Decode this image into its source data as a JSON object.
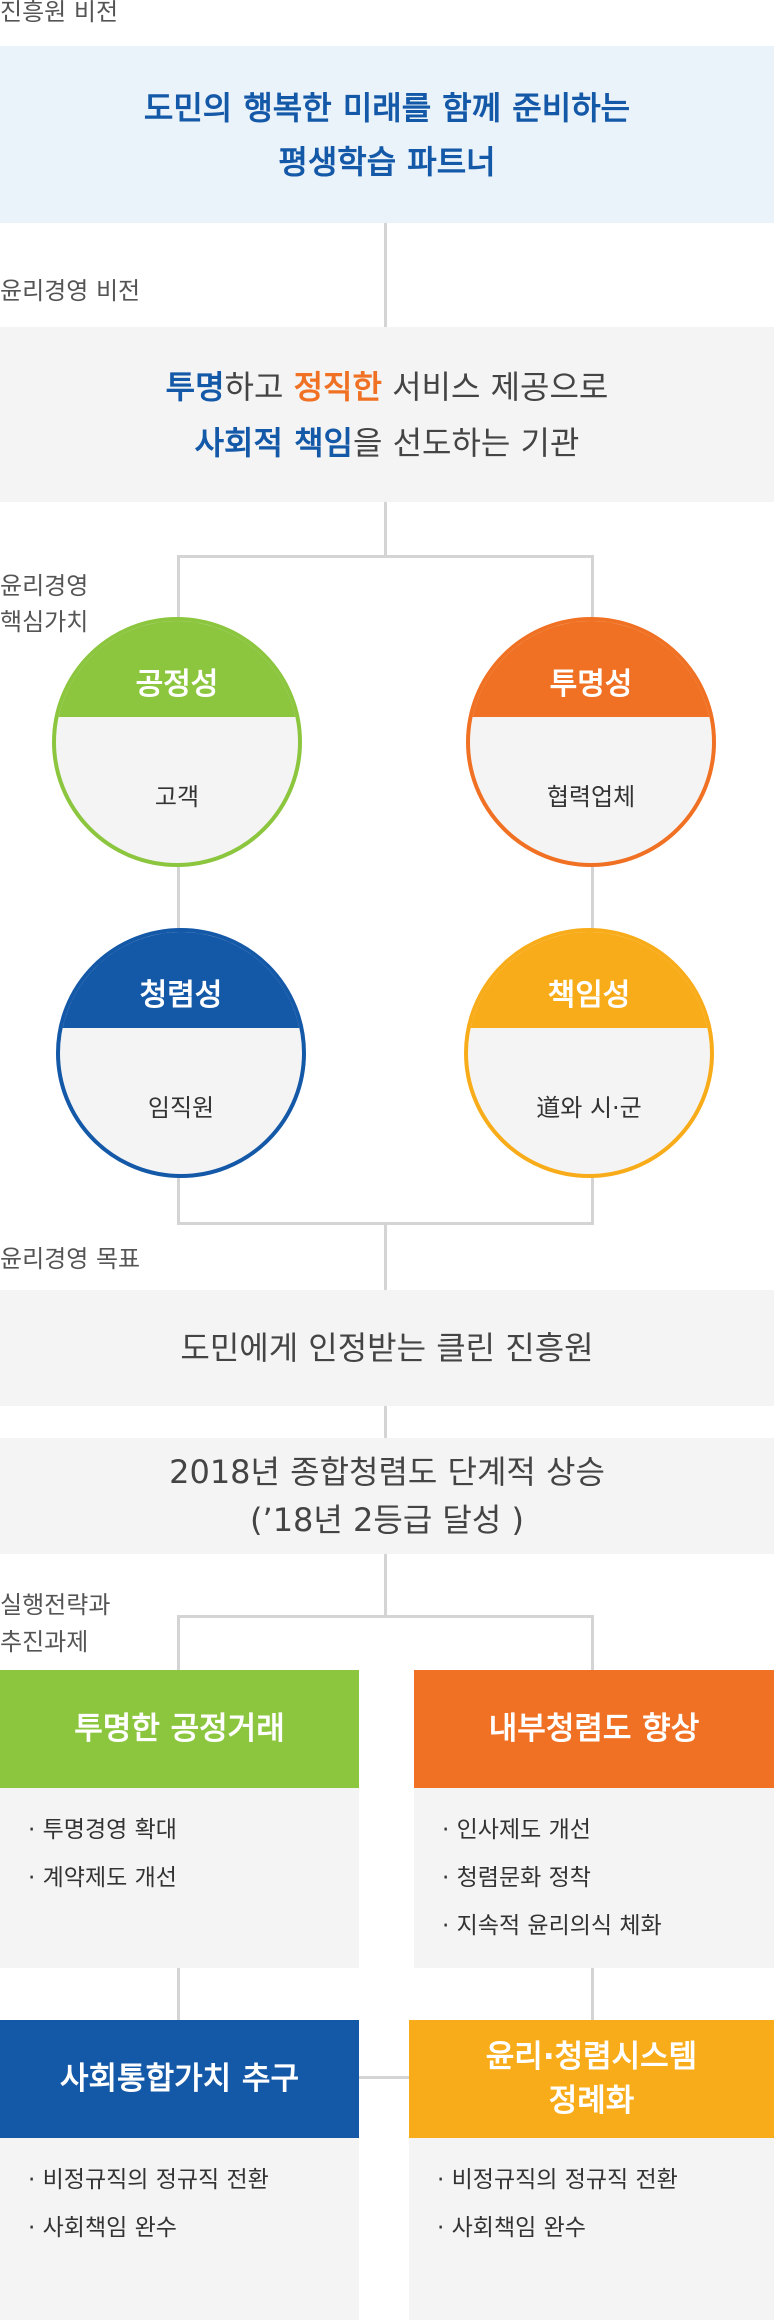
{
  "vision": {
    "label": "진흥원 비전",
    "line1": "도민의 행복한 미래를 함께 준비하는",
    "line2": "평생학습 파트너"
  },
  "ethics_vision": {
    "label": "윤리경영 비전",
    "line1_a": "투명",
    "line1_b": "하고 ",
    "line1_c": "정직한",
    "line1_d": " 서비스 제공으로",
    "line2_a": "사회적 책임",
    "line2_b": "을 선도하는 기관"
  },
  "core_values": {
    "label_line1": "윤리경영",
    "label_line2": "핵심가치",
    "items": [
      {
        "title": "공정성",
        "target": "고객",
        "color": "#8cc63f"
      },
      {
        "title": "투명성",
        "target": "협력업체",
        "color": "#f07123"
      },
      {
        "title": "청렴성",
        "target": "임직원",
        "color": "#1458a8"
      },
      {
        "title": "책임성",
        "target": "道와 시·군",
        "color": "#f9ac1a"
      }
    ]
  },
  "goals": {
    "label": "윤리경영 목표",
    "goal1": "도민에게 인정받는 클린 진흥원",
    "goal2_line1": "2018년 종합청렴도 단계적 상승",
    "goal2_line2": "(’18년 2등급 달성 )"
  },
  "strategy": {
    "label_line1": "실행전략과",
    "label_line2": "추진과제",
    "cards": [
      {
        "title": "투명한 공정거래",
        "color": "#8cc63f",
        "items": [
          "· 투명경영 확대",
          "· 계약제도 개선"
        ]
      },
      {
        "title": "내부청렴도 향상",
        "color": "#f07123",
        "items": [
          "· 인사제도 개선",
          "· 청렴문화 정착",
          "· 지속적 윤리의식 체화"
        ]
      },
      {
        "title": "사회통합가치 추구",
        "color": "#1458a8",
        "items": [
          "· 비정규직의 정규직 전환",
          "· 사회책임 완수"
        ]
      },
      {
        "title_line1": "윤리·청렴시스템",
        "title_line2": "정례화",
        "color": "#f9ac1a",
        "items": [
          "· 비정규직의 정규직 전환",
          "· 사회책임 완수"
        ]
      }
    ]
  }
}
